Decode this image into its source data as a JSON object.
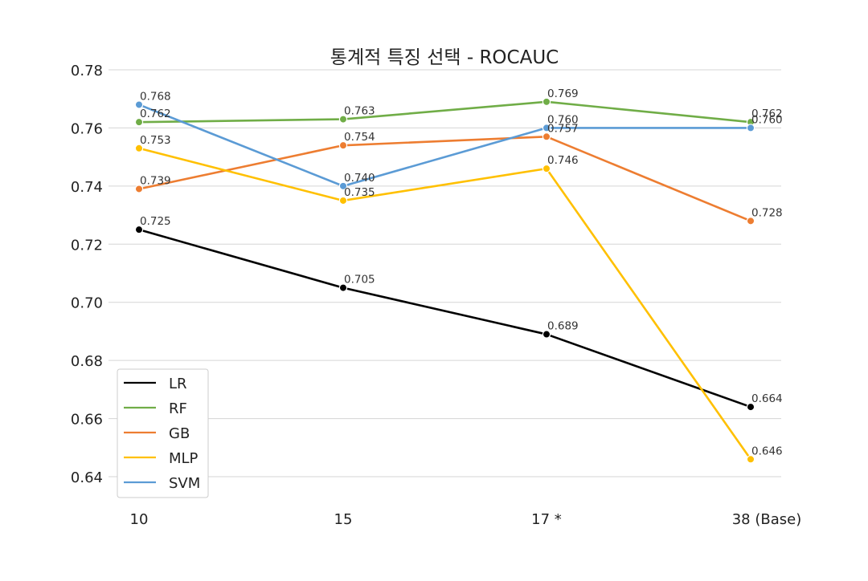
{
  "chart_data": {
    "type": "line",
    "title": "통계적 특징 선택 - ROCAUC",
    "xlabel": "",
    "ylabel": "",
    "categories": [
      "10",
      "15",
      "17 *",
      "38 (Base)"
    ],
    "ylim": [
      0.63,
      0.78
    ],
    "yticks": [
      0.64,
      0.66,
      0.68,
      0.7,
      0.72,
      0.74,
      0.76,
      0.78
    ],
    "ytick_labels": [
      "0.64",
      "0.66",
      "0.68",
      "0.70",
      "0.72",
      "0.74",
      "0.76",
      "0.78"
    ],
    "grid": true,
    "legend_position": "lower-left",
    "series": [
      {
        "name": "LR",
        "color": "#000000",
        "values": [
          0.725,
          0.705,
          0.689,
          0.664
        ],
        "labels": [
          "0.725",
          "0.705",
          "0.689",
          "0.664"
        ]
      },
      {
        "name": "RF",
        "color": "#70ad47",
        "values": [
          0.762,
          0.763,
          0.769,
          0.762
        ],
        "labels": [
          "0.762",
          "0.763",
          "0.769",
          "0.762"
        ]
      },
      {
        "name": "GB",
        "color": "#ed7d31",
        "values": [
          0.739,
          0.754,
          0.757,
          0.728
        ],
        "labels": [
          "0.739",
          "0.754",
          "0.757",
          "0.728"
        ]
      },
      {
        "name": "MLP",
        "color": "#ffc000",
        "values": [
          0.753,
          0.735,
          0.746,
          0.646
        ],
        "labels": [
          "0.753",
          "0.735",
          "0.746",
          "0.646"
        ]
      },
      {
        "name": "SVM",
        "color": "#5b9bd5",
        "values": [
          0.768,
          0.74,
          0.76,
          0.76
        ],
        "labels": [
          "0.768",
          "0.740",
          "0.760",
          "0.760"
        ]
      }
    ]
  }
}
